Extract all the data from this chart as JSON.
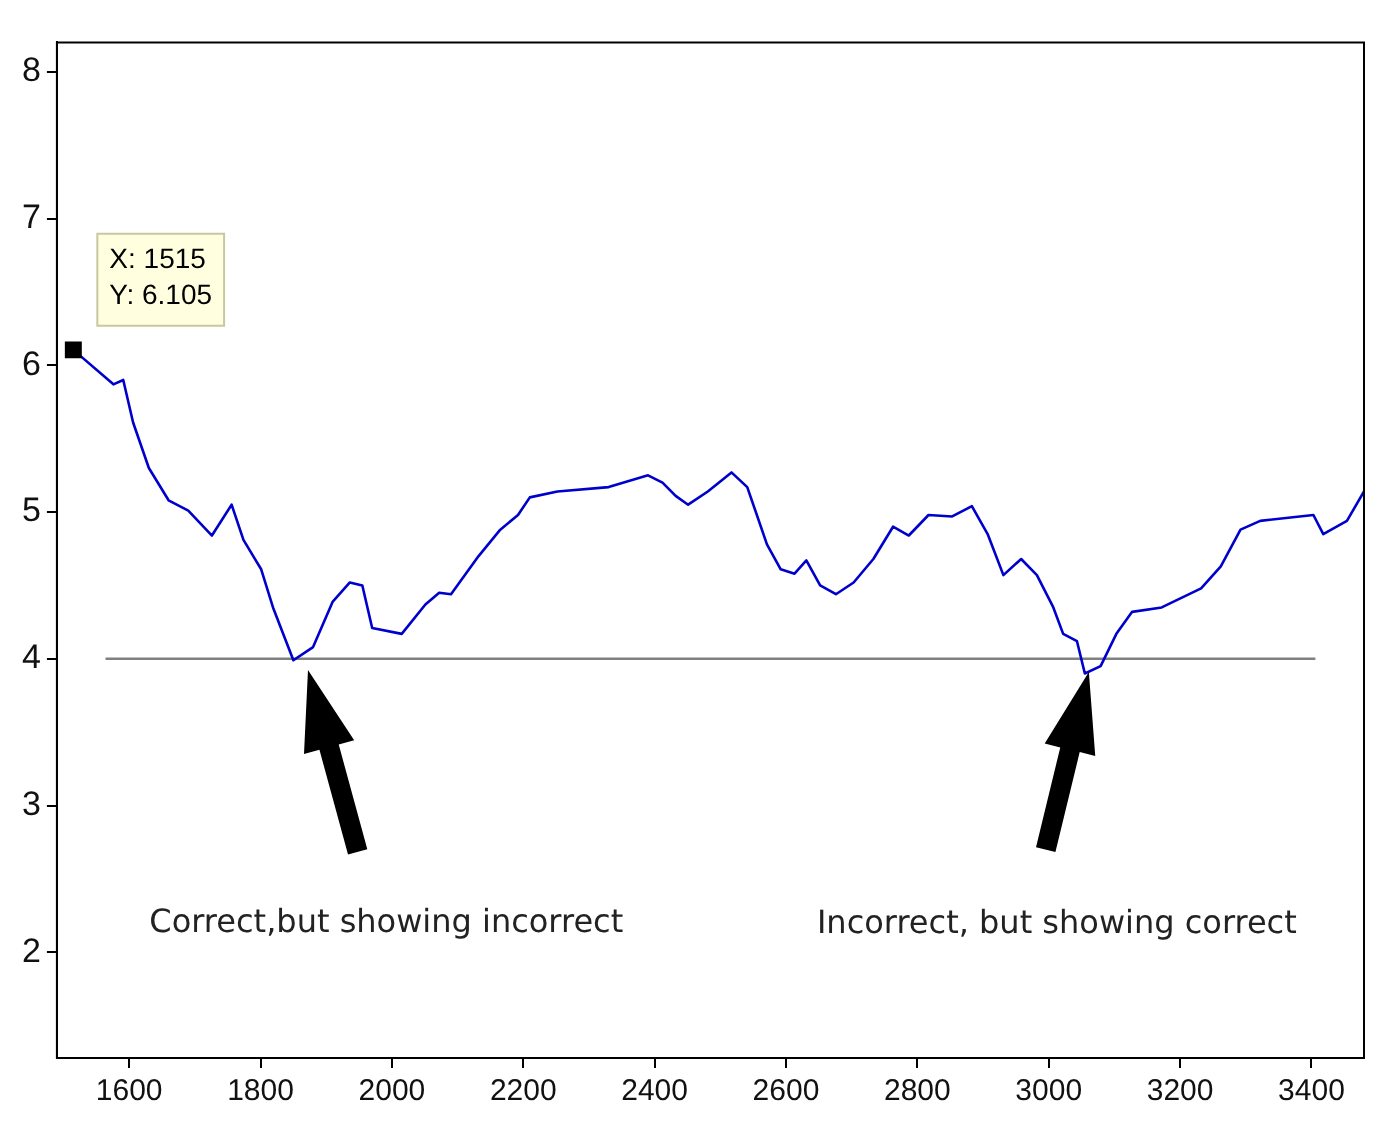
{
  "chart_data": {
    "type": "line",
    "xlim": [
      1490,
      3480
    ],
    "ylim": [
      1.28,
      8.2
    ],
    "xticks": [
      1600,
      1800,
      2000,
      2200,
      2400,
      2600,
      2800,
      3000,
      3200,
      3400
    ],
    "yticks": [
      2,
      3,
      4,
      5,
      6,
      7,
      8
    ],
    "grid": false,
    "legend": false,
    "marker": "none",
    "line_style": "solid",
    "series": [
      {
        "color": "#0000cc",
        "x": [
          1515,
          1576,
          1591,
          1606,
          1630,
          1660,
          1690,
          1726,
          1756,
          1774,
          1801,
          1819,
          1850,
          1880,
          1910,
          1936,
          1955,
          1970,
          2015,
          2051,
          2072,
          2090,
          2132,
          2165,
          2192,
          2210,
          2252,
          2330,
          2390,
          2412,
          2432,
          2451,
          2481,
          2517,
          2541,
          2571,
          2592,
          2613,
          2631,
          2652,
          2676,
          2703,
          2733,
          2763,
          2787,
          2817,
          2853,
          2883,
          2907,
          2931,
          2958,
          2982,
          3007,
          3022,
          3043,
          3055,
          3079,
          3103,
          3127,
          3172,
          3232,
          3262,
          3292,
          3322,
          3403,
          3418,
          3454,
          3480
        ],
        "values": [
          6.105,
          5.87,
          5.9,
          5.61,
          5.3,
          5.08,
          5.01,
          4.84,
          5.05,
          4.81,
          4.61,
          4.35,
          3.99,
          4.08,
          4.39,
          4.52,
          4.5,
          4.21,
          4.17,
          4.37,
          4.45,
          4.44,
          4.7,
          4.88,
          4.98,
          5.1,
          5.14,
          5.17,
          5.25,
          5.2,
          5.11,
          5.05,
          5.14,
          5.27,
          5.17,
          4.78,
          4.61,
          4.58,
          4.67,
          4.5,
          4.44,
          4.52,
          4.68,
          4.9,
          4.84,
          4.98,
          4.97,
          5.04,
          4.85,
          4.57,
          4.68,
          4.57,
          4.35,
          4.17,
          4.12,
          3.9,
          3.95,
          4.17,
          4.32,
          4.35,
          4.48,
          4.63,
          4.88,
          4.94,
          4.98,
          4.85,
          4.94,
          5.14
        ]
      },
      {
        "color": "#808080",
        "x": [
          1564,
          3406
        ],
        "values": [
          4,
          4
        ]
      },
      {
        "type": "scatter",
        "marker": "square",
        "color": "#000000",
        "x": [
          1515
        ],
        "values": [
          6.105
        ]
      }
    ],
    "annotations": [
      {
        "text": "X: 1515\nY: 6.105",
        "x": 1515,
        "y": 6.105
      },
      "Correct,but showing incorrect",
      "Incorrect, but showing correct"
    ]
  }
}
